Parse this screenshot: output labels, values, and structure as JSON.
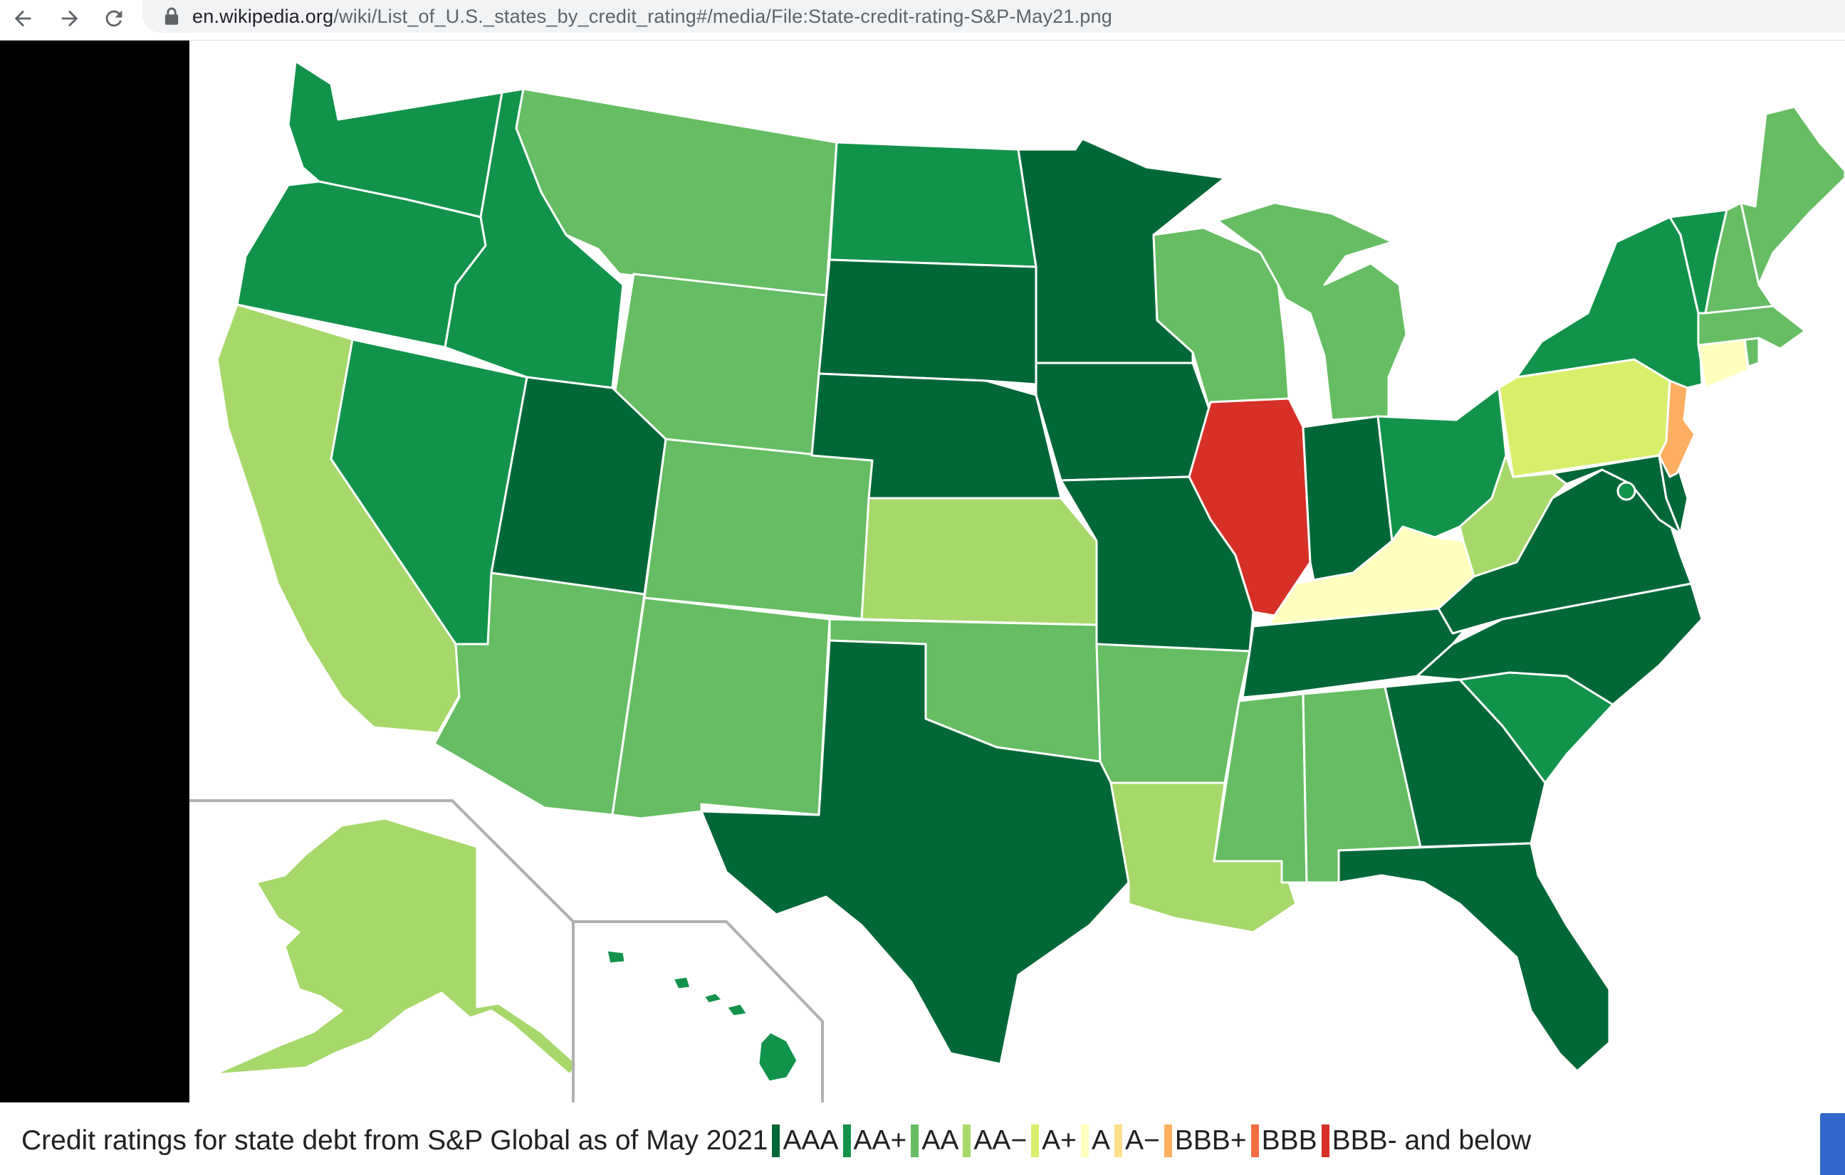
{
  "browser": {
    "url_host": "en.wikipedia.org",
    "url_path": "/wiki/List_of_U.S._states_by_credit_rating#/media/File:State-credit-rating-S&P-May21.png",
    "icons": {
      "back": "arrow-left-icon",
      "forward": "arrow-right-icon",
      "reload": "reload-icon",
      "lock": "lock-icon"
    }
  },
  "map": {
    "colors": {
      "AAA": "#006837",
      "AA+": "#12934b",
      "AA": "#66bd63",
      "AA-": "#a6d96a",
      "A+": "#d9ef6b",
      "A": "#ffffbf",
      "A-": "#fee08b",
      "BBB+": "#fdae61",
      "BBB": "#f46d43",
      "BBB-": "#d73027"
    },
    "states": {
      "WA": "AA+",
      "OR": "AA+",
      "CA": "AA-",
      "NV": "AA+",
      "ID": "AA+",
      "MT": "AA",
      "WY": "AA",
      "UT": "AAA",
      "AZ": "AA",
      "CO": "AA",
      "NM": "AA",
      "ND": "AA+",
      "SD": "AAA",
      "NE": "AAA",
      "KS": "AA-",
      "OK": "AA",
      "TX": "AAA",
      "MN": "AAA",
      "IA": "AAA",
      "MO": "AAA",
      "AR": "AA",
      "LA": "AA-",
      "WI": "AA",
      "IL": "BBB-",
      "MI": "AA",
      "IN": "AAA",
      "OH": "AA+",
      "KY": "A",
      "TN": "AAA",
      "MS": "AA",
      "AL": "AA",
      "GA": "AAA",
      "FL": "AAA",
      "SC": "AA+",
      "NC": "AAA",
      "VA": "AAA",
      "WV": "AA-",
      "PA": "A+",
      "NY": "AA+",
      "VT": "AA+",
      "NH": "AA",
      "ME": "AA",
      "MA": "AA",
      "RI": "AA",
      "CT": "A",
      "NJ": "BBB+",
      "DE": "AAA",
      "MD": "AAA",
      "DC": "AA+",
      "AK": "AA-",
      "HI": "AA+"
    }
  },
  "caption": {
    "text": "Credit ratings for state debt from S&P Global as of May 2021",
    "legend": [
      {
        "label": "AAA",
        "color": "#006837"
      },
      {
        "label": "AA+",
        "color": "#12934b"
      },
      {
        "label": "AA",
        "color": "#66bd63"
      },
      {
        "label": "AA−",
        "color": "#a6d96a"
      },
      {
        "label": "A+",
        "color": "#d9ef6b"
      },
      {
        "label": "A",
        "color": "#ffffbf"
      },
      {
        "label": "A−",
        "color": "#fee08b"
      },
      {
        "label": "BBB+",
        "color": "#fdae61"
      },
      {
        "label": "BBB",
        "color": "#f46d43"
      },
      {
        "label": "BBB- and below",
        "color": "#d73027"
      }
    ]
  }
}
